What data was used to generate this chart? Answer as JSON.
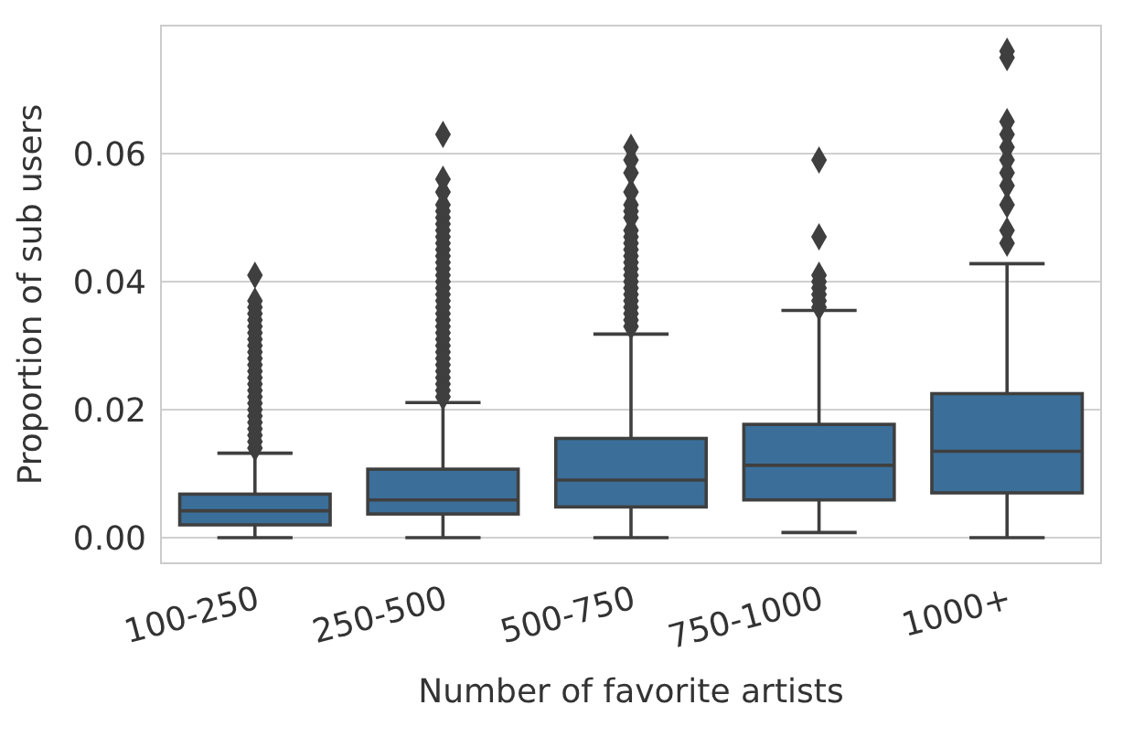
{
  "chart_data": {
    "type": "box",
    "xlabel": "Number of favorite artists",
    "ylabel": "Proportion of sub users",
    "categories": [
      "100-250",
      "250-500",
      "500-750",
      "750-1000",
      "1000+"
    ],
    "color": "#3b6f9a",
    "grid": "y",
    "ylim": [
      -0.004,
      0.08
    ],
    "yticks": [
      {
        "value": 0,
        "label": "0.00"
      },
      {
        "value": 0.02,
        "label": "0.02"
      },
      {
        "value": 0.04,
        "label": "0.04"
      },
      {
        "value": 0.06,
        "label": "0.06"
      }
    ],
    "marker": "diamond",
    "boxes": [
      {
        "low": 0,
        "q1": 0.002,
        "median": 0.0042,
        "q3": 0.0068,
        "high": 0.0132,
        "outliers": [
          0.014,
          0.015,
          0.016,
          0.017,
          0.018,
          0.019,
          0.02,
          0.021,
          0.022,
          0.023,
          0.024,
          0.025,
          0.026,
          0.027,
          0.028,
          0.029,
          0.03,
          0.031,
          0.032,
          0.033,
          0.034,
          0.035,
          0.036,
          0.037,
          0.041
        ]
      },
      {
        "low": 0,
        "q1": 0.0037,
        "median": 0.0059,
        "q3": 0.0107,
        "high": 0.0211,
        "outliers": [
          0.022,
          0.023,
          0.024,
          0.025,
          0.026,
          0.027,
          0.028,
          0.029,
          0.03,
          0.031,
          0.032,
          0.033,
          0.034,
          0.035,
          0.036,
          0.037,
          0.038,
          0.039,
          0.04,
          0.041,
          0.042,
          0.043,
          0.044,
          0.045,
          0.046,
          0.047,
          0.048,
          0.049,
          0.05,
          0.051,
          0.052,
          0.054,
          0.056,
          0.063
        ]
      },
      {
        "low": 0,
        "q1": 0.0048,
        "median": 0.009,
        "q3": 0.0155,
        "high": 0.0318,
        "outliers": [
          0.033,
          0.034,
          0.035,
          0.036,
          0.037,
          0.038,
          0.039,
          0.04,
          0.041,
          0.042,
          0.043,
          0.044,
          0.045,
          0.046,
          0.047,
          0.048,
          0.05,
          0.051,
          0.052,
          0.054,
          0.057,
          0.059,
          0.061
        ]
      },
      {
        "low": 0.0008,
        "q1": 0.0059,
        "median": 0.0113,
        "q3": 0.0177,
        "high": 0.0355,
        "outliers": [
          0.036,
          0.037,
          0.038,
          0.039,
          0.04,
          0.041,
          0.047,
          0.059
        ]
      },
      {
        "low": 0,
        "q1": 0.007,
        "median": 0.0135,
        "q3": 0.0225,
        "high": 0.0428,
        "outliers": [
          0.046,
          0.048,
          0.052,
          0.055,
          0.057,
          0.059,
          0.061,
          0.063,
          0.065,
          0.075,
          0.076
        ]
      }
    ]
  }
}
